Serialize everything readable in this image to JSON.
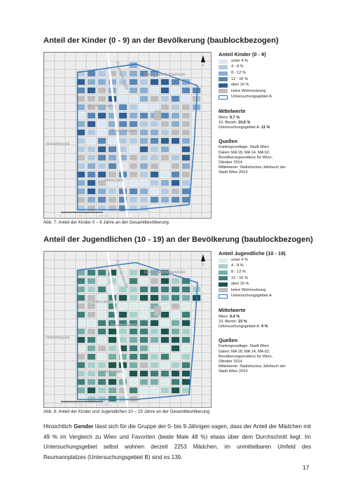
{
  "figures": [
    {
      "title": "Anteil der Kinder (0 - 9) an der Bevölkerung (baublockbezogen)",
      "map_labels": {
        "north": "N",
        "station": "Hauptbahnhofgelände",
        "street": "Favoritenstraße",
        "quellen": "Quellenstraße",
        "reumann": "Reumannplatz",
        "arthaber": "Arthaberpark",
        "anker": "Ankerpark",
        "scale_0": "0",
        "scale_1": "250",
        "scale_2": "500 Meter"
      },
      "legend": {
        "title": "Anteil Kinder (0 - 9)",
        "items": [
          "unter 4 %",
          "4 - 8 %",
          "8 - 12 %",
          "12 - 16 %",
          "über 16 %",
          "keine Wohnnutzung",
          "Untersuchungsgebiet A"
        ]
      },
      "averages": {
        "heading": "Mittelwerte",
        "lines": [
          {
            "label": "Wien:",
            "value": "9,7 %"
          },
          {
            "label": "10. Bezirk:",
            "value": "10,6 %"
          },
          {
            "label": "Untersuchungsgebiet A:",
            "value": "11 %"
          }
        ]
      },
      "sources": {
        "heading": "Quellen",
        "lines": [
          "Kartengrundlage: Stadt Wien",
          "Daten: MA 18, MA 14, MA 62;",
          "Bevölkerungsevidenz für Wien,",
          "Oktober 2014",
          "Mittelwerte: Statistisches Jahrbuch der",
          "Stadt Wien 2014"
        ]
      },
      "caption": "Abb. 7: Anteil der Kinder 0 – 9 Jahre an der Gesamtbevölkerung"
    },
    {
      "title": "Anteil der Jugendlichen (10 - 19) an der Bevölkerung (baublockbezogen)",
      "map_labels": {
        "north": "N",
        "station": "Hauptbahnhofgelände",
        "street": "Favoritenstraße",
        "quellen": "Quellenstraße",
        "reumann": "Reumannplatz",
        "arthaber": "Arthaberpark",
        "anker": "Ankerpark",
        "scale_0": "0",
        "scale_1": "250",
        "scale_2": "500 Meter"
      },
      "legend": {
        "title": "Anteil Jugendliche (10 - 19)",
        "items": [
          "unter 4 %",
          "4 - 8 %",
          "8 - 12 %",
          "12 - 16 %",
          "über 16 %",
          "keine Wohnnutzung",
          "Untersuchungsgebiet A"
        ]
      },
      "averages": {
        "heading": "Mittelwerte",
        "lines": [
          {
            "label": "Wien:",
            "value": "9,4 %"
          },
          {
            "label": "10. Bezirk:",
            "value": "10 %"
          },
          {
            "label": "Untersuchungsgebiet A:",
            "value": "9 %"
          }
        ]
      },
      "sources": {
        "heading": "Quellen",
        "lines": [
          "Kartengrundlage: Stadt Wien",
          "Daten: MA 18, MA 14, MA 62;",
          "Bevölkerungsevidenz für Wien,",
          "Oktober 2014",
          "Mittelwerte: Statistisches Jahrbuch der",
          "Stadt Wien 2014"
        ]
      },
      "caption": "Abb. 8: Anteil der Kinder und Jugendlichen 10 – 19 Jahre an der Gesamtbevölkerung"
    }
  ],
  "paragraph": {
    "before": "Hinsichtlich ",
    "bold": "Gender",
    "after": " lässt sich für die Gruppe der 0- bis 9-Jährigen sagen, dass der Anteil der Mädchen mit 49 % im Vergleich zu Wien und Favoriten (beide Male 48 %) etwas über dem Durchschnitt liegt. Im Untersuchungsgebiet selbst wohnen derzeit 2253 Mädchen, im unmittelbaren Umfeld des Reumannplatzes (Untersuchungsgebiet B) sind es 139."
  },
  "page_number": "17"
}
